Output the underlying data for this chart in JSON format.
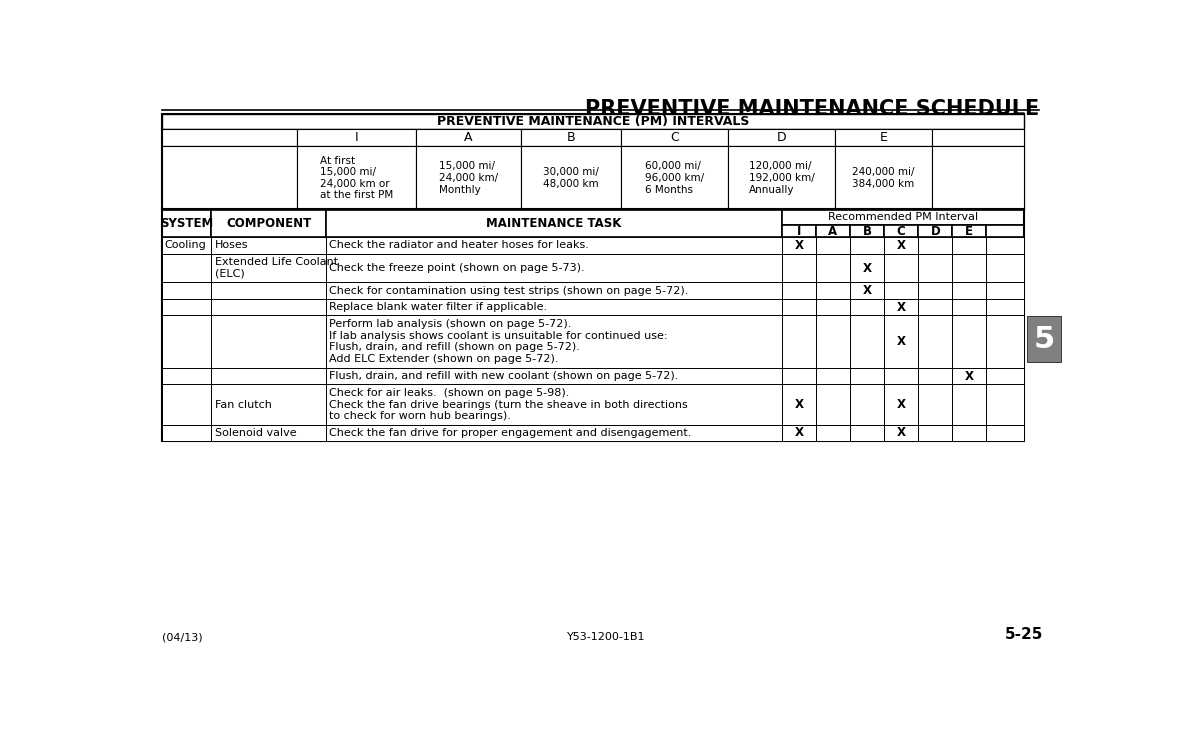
{
  "page_title": "PREVENTIVE MAINTENANCE SCHEDULE",
  "table_title": "PREVENTIVE MAINTENANCE (PM) INTERVALS",
  "interval_headers": [
    "I",
    "A",
    "B",
    "C",
    "D",
    "E"
  ],
  "interval_descriptions": [
    "At first\n15,000 mi/\n24,000 km or\nat the first PM",
    "15,000 mi/\n24,000 km/\nMonthly",
    "30,000 mi/\n48,000 km",
    "60,000 mi/\n96,000 km/\n6 Months",
    "120,000 mi/\n192,000 km/\nAnnually",
    "240,000 mi/\n384,000 km"
  ],
  "pm_letters": [
    "I",
    "A",
    "B",
    "C",
    "D",
    "E"
  ],
  "rows": [
    {
      "system": "Cooling",
      "component": "Hoses",
      "task": "Check the radiator and heater hoses for leaks.",
      "task_lines": 1,
      "pm": {
        "I": true,
        "A": false,
        "B": false,
        "C": true,
        "D": false,
        "E": false
      }
    },
    {
      "system": "",
      "component": "Extended Life Coolant\n(ELC)",
      "task": "Check the freeze point (shown on page 5-73).",
      "task_lines": 1,
      "pm": {
        "I": false,
        "A": false,
        "B": true,
        "C": false,
        "D": false,
        "E": false
      }
    },
    {
      "system": "",
      "component": "",
      "task": "Check for contamination using test strips (shown on page 5-72).",
      "task_lines": 1,
      "pm": {
        "I": false,
        "A": false,
        "B": true,
        "C": false,
        "D": false,
        "E": false
      }
    },
    {
      "system": "",
      "component": "",
      "task": "Replace blank water filter if applicable.",
      "task_lines": 1,
      "pm": {
        "I": false,
        "A": false,
        "B": false,
        "C": true,
        "D": false,
        "E": false
      }
    },
    {
      "system": "",
      "component": "",
      "task": "Perform lab analysis (shown on page 5-72).\nIf lab analysis shows coolant is unsuitable for continued use:\nFlush, drain, and refill (shown on page 5-72).\nAdd ELC Extender (shown on page 5-72).",
      "task_lines": 4,
      "pm": {
        "I": false,
        "A": false,
        "B": false,
        "C": true,
        "D": false,
        "E": false
      }
    },
    {
      "system": "",
      "component": "",
      "task": "Flush, drain, and refill with new coolant (shown on page 5-72).",
      "task_lines": 1,
      "pm": {
        "I": false,
        "A": false,
        "B": false,
        "C": false,
        "D": false,
        "E": true
      }
    },
    {
      "system": "",
      "component": "Fan clutch",
      "task": "Check for air leaks.  (shown on page 5-98).\nCheck the fan drive bearings (turn the sheave in both directions\nto check for worn hub bearings).",
      "task_lines": 3,
      "pm": {
        "I": true,
        "A": false,
        "B": false,
        "C": true,
        "D": false,
        "E": false
      }
    },
    {
      "system": "",
      "component": "Solenoid valve",
      "task": "Check the fan drive for proper engagement and disengagement.",
      "task_lines": 1,
      "pm": {
        "I": true,
        "A": false,
        "B": false,
        "C": true,
        "D": false,
        "E": false
      }
    }
  ],
  "footer_left": "(04/13)",
  "footer_center": "Y53-1200-1B1",
  "footer_right": "5-25",
  "tab_label": "5",
  "bg_color": "#ffffff",
  "tab_color": "#808080"
}
